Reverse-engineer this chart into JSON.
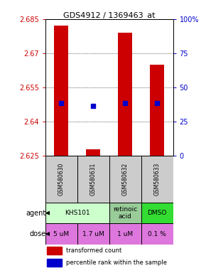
{
  "title": "GDS4912 / 1369463_at",
  "samples": [
    "GSM580630",
    "GSM580631",
    "GSM580632",
    "GSM580633"
  ],
  "bar_bottoms": [
    2.625,
    2.625,
    2.625,
    2.625
  ],
  "bar_tops": [
    2.682,
    2.628,
    2.679,
    2.665
  ],
  "percentile_values": [
    2.648,
    2.647,
    2.648,
    2.648
  ],
  "ylim": [
    2.625,
    2.685
  ],
  "yticks": [
    2.625,
    2.64,
    2.655,
    2.67,
    2.685
  ],
  "ytick_labels": [
    "2.625",
    "2.64",
    "2.655",
    "2.67",
    "2.685"
  ],
  "right_ytick_percents": [
    0,
    25,
    50,
    75,
    100
  ],
  "right_ytick_labels": [
    "0",
    "25",
    "50",
    "75",
    "100%"
  ],
  "bar_color": "#cc0000",
  "dot_color": "#0000cc",
  "doses": [
    "5 uM",
    "1.7 uM",
    "1 uM",
    "0.1 %"
  ],
  "dose_bg_color": "#dd77dd",
  "dose_text_color": "#cc00cc",
  "left_label_color": "#cc0000",
  "right_label_color": "#0000cc",
  "agent_config": [
    {
      "cols": [
        0,
        1
      ],
      "label": "KHS101",
      "color": "#ccffcc"
    },
    {
      "cols": [
        2
      ],
      "label": "retinoic\nacid",
      "color": "#99cc99"
    },
    {
      "cols": [
        3
      ],
      "label": "DMSO",
      "color": "#33dd33"
    }
  ],
  "sample_bg": "#cccccc"
}
